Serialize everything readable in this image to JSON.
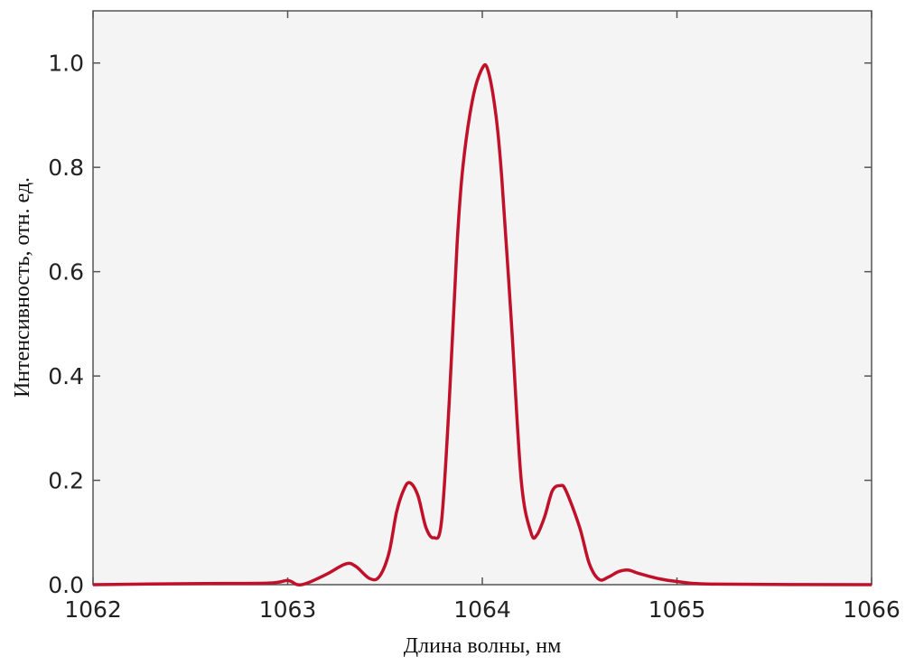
{
  "chart_data": {
    "type": "line",
    "xlabel": "Длина волны, нм",
    "ylabel": "Интенсивность, отн. ед.",
    "xlim": [
      1062,
      1066
    ],
    "ylim": [
      0,
      1.1
    ],
    "xticks": [
      1062,
      1063,
      1064,
      1065,
      1066
    ],
    "yticks": [
      {
        "value": 0,
        "label": "0.0"
      },
      0.2,
      0.4,
      0.6,
      0.8,
      {
        "value": 1,
        "label": "1.0"
      }
    ],
    "series": [
      {
        "color": "#c0102a",
        "x": [
          1062,
          1062.5,
          1062.9,
          1063.0,
          1063.05,
          1063.1,
          1063.2,
          1063.3,
          1063.35,
          1063.42,
          1063.47,
          1063.52,
          1063.56,
          1063.6,
          1063.63,
          1063.67,
          1063.71,
          1063.75,
          1063.79,
          1063.83,
          1063.87,
          1063.9,
          1063.95,
          1064.0,
          1064.03,
          1064.07,
          1064.1,
          1064.15,
          1064.2,
          1064.25,
          1064.28,
          1064.32,
          1064.36,
          1064.4,
          1064.43,
          1064.5,
          1064.55,
          1064.6,
          1064.65,
          1064.7,
          1064.75,
          1064.8,
          1064.9,
          1065.0,
          1065.2,
          1066
        ],
        "values": [
          0,
          0.002,
          0.003,
          0.008,
          0.0,
          0.003,
          0.02,
          0.04,
          0.035,
          0.012,
          0.015,
          0.06,
          0.14,
          0.185,
          0.195,
          0.17,
          0.11,
          0.09,
          0.12,
          0.35,
          0.65,
          0.8,
          0.93,
          0.99,
          0.985,
          0.9,
          0.78,
          0.5,
          0.2,
          0.1,
          0.095,
          0.13,
          0.18,
          0.19,
          0.18,
          0.11,
          0.04,
          0.01,
          0.015,
          0.025,
          0.028,
          0.022,
          0.012,
          0.006,
          0.001,
          0
        ]
      }
    ]
  }
}
